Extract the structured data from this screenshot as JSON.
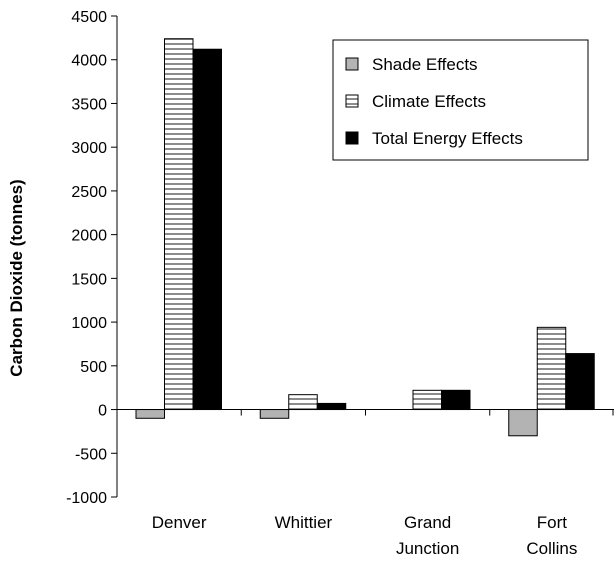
{
  "chart_data": {
    "type": "bar",
    "title": "",
    "xlabel": "",
    "ylabel": "Carbon Dioxide (tonnes)",
    "ylim": [
      -1000,
      4500
    ],
    "yticks": [
      4500,
      4000,
      3500,
      3000,
      2500,
      2000,
      1500,
      1000,
      500,
      0,
      -500,
      -1000
    ],
    "categories": [
      [
        "Denver"
      ],
      [
        "Whittier"
      ],
      [
        "Grand",
        "Junction"
      ],
      [
        "Fort",
        "Collins"
      ]
    ],
    "series": [
      {
        "name": "Shade Effects",
        "values": [
          -100,
          -100,
          0,
          -300
        ],
        "color": "#b3b3b3",
        "pattern": "solid-gray"
      },
      {
        "name": "Climate Effects",
        "values": [
          4240,
          170,
          220,
          940
        ],
        "color": "#ffffff",
        "pattern": "horizontal-stripes"
      },
      {
        "name": "Total Energy Effects",
        "values": [
          4120,
          70,
          220,
          640
        ],
        "color": "#000000",
        "pattern": "solid-black"
      }
    ],
    "legend_position": "top-right",
    "grid": false
  }
}
